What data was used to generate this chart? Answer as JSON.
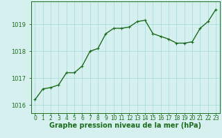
{
  "x": [
    0,
    1,
    2,
    3,
    4,
    5,
    6,
    7,
    8,
    9,
    10,
    11,
    12,
    13,
    14,
    15,
    16,
    17,
    18,
    19,
    20,
    21,
    22,
    23
  ],
  "y": [
    1016.2,
    1016.6,
    1016.65,
    1016.75,
    1017.2,
    1017.2,
    1017.45,
    1018.0,
    1018.1,
    1018.65,
    1018.85,
    1018.85,
    1018.9,
    1019.1,
    1019.15,
    1018.65,
    1018.55,
    1018.45,
    1018.3,
    1018.3,
    1018.35,
    1018.85,
    1019.1,
    1019.55
  ],
  "line_color": "#1a6b1a",
  "marker": "+",
  "marker_color": "#1a6b1a",
  "marker_size": 3,
  "line_width": 1.0,
  "background_color": "#d6f0f0",
  "grid_color": "#aadddd",
  "xlabel": "Graphe pression niveau de la mer (hPa)",
  "xlabel_color": "#1a6b1a",
  "xlabel_fontsize": 7,
  "yticks": [
    1016,
    1017,
    1018,
    1019
  ],
  "ylim": [
    1015.7,
    1019.85
  ],
  "xlim": [
    -0.5,
    23.5
  ],
  "tick_color": "#1a6b1a",
  "ytick_fontsize": 6,
  "xtick_fontsize": 5.5,
  "spine_color": "#1a6b1a"
}
